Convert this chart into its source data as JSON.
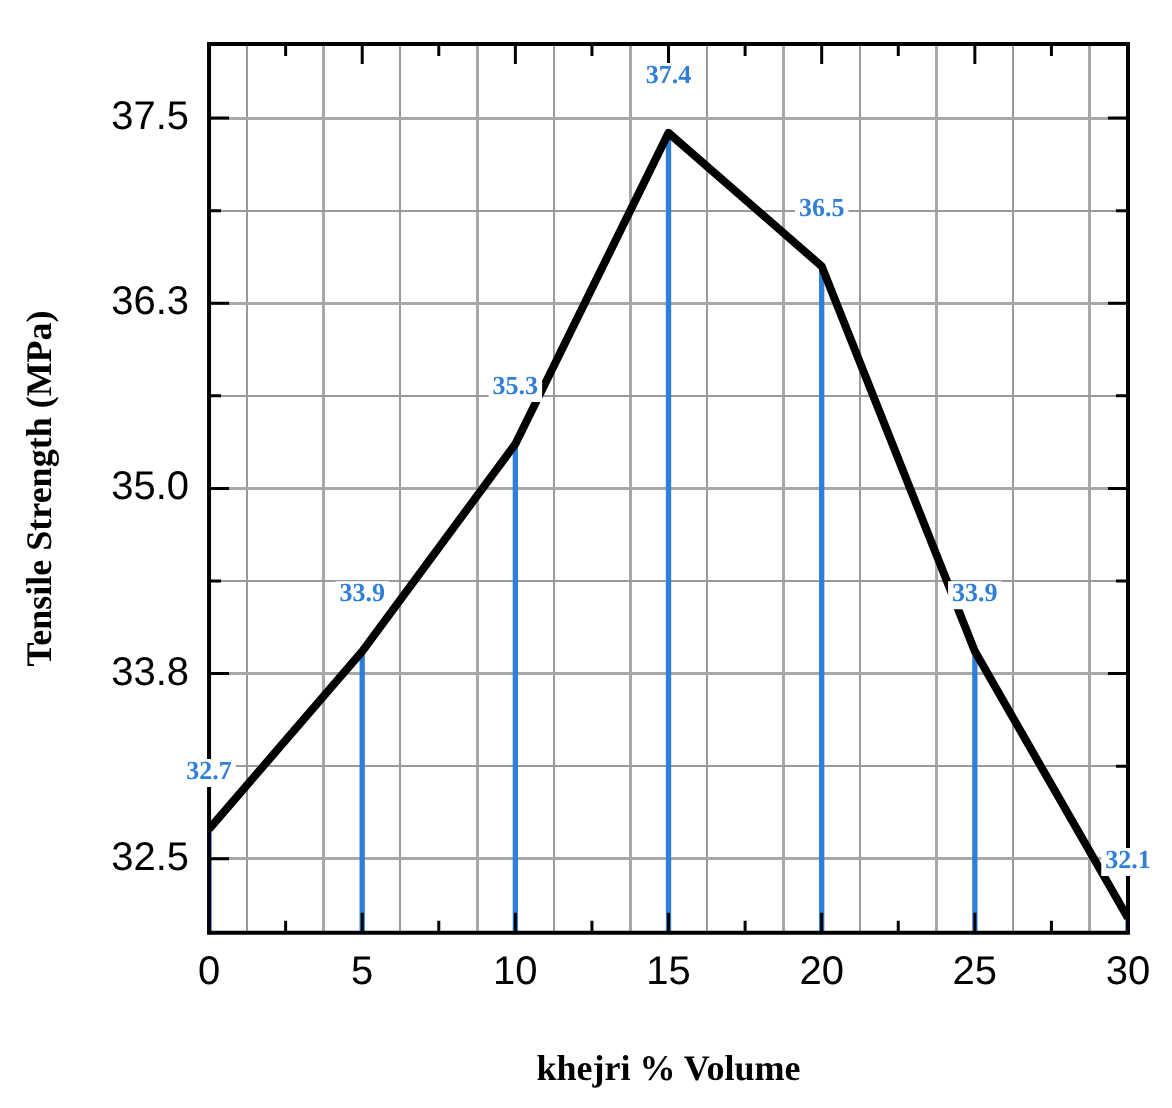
{
  "chart_data": {
    "type": "line",
    "xlabel": "khejri % Volume",
    "ylabel": "Tensile Strength (MPa)",
    "x": [
      0,
      5,
      10,
      15,
      20,
      25,
      30
    ],
    "series": [
      {
        "type": "bar",
        "color": "#2f7fd8",
        "values": [
          32.7,
          33.9,
          35.3,
          37.4,
          36.5,
          33.9,
          32.1
        ],
        "value_labels": [
          "32.7",
          "33.9",
          "35.3",
          "37.4",
          "36.5",
          "33.9",
          "32.1"
        ]
      },
      {
        "color": "#000000",
        "values": [
          32.7,
          33.9,
          35.3,
          37.4,
          36.5,
          33.9,
          32.1
        ]
      }
    ],
    "xlim": [
      0,
      30
    ],
    "xticks": [
      0,
      {
        "value": 2.5,
        "label": null
      },
      5,
      {
        "value": 7.5,
        "label": null
      },
      10,
      {
        "value": 12.5,
        "label": null
      },
      15,
      {
        "value": 17.5,
        "label": null
      },
      20,
      {
        "value": 22.5,
        "label": null
      },
      25,
      {
        "value": 27.5,
        "label": null
      },
      30
    ],
    "ylim": [
      32,
      38
    ],
    "yticks": [
      32.5,
      {
        "value": 33.125,
        "label": null
      },
      {
        "value": 33.75,
        "label": "33.8"
      },
      {
        "value": 34.375,
        "label": null
      },
      {
        "value": 35,
        "label": "35.0"
      },
      {
        "value": 35.625,
        "label": null
      },
      {
        "value": 36.25,
        "label": "36.3"
      },
      {
        "value": 36.875,
        "label": null
      },
      37.5
    ],
    "grid": true,
    "legend": false,
    "marker": "none",
    "line_style": "solid"
  }
}
